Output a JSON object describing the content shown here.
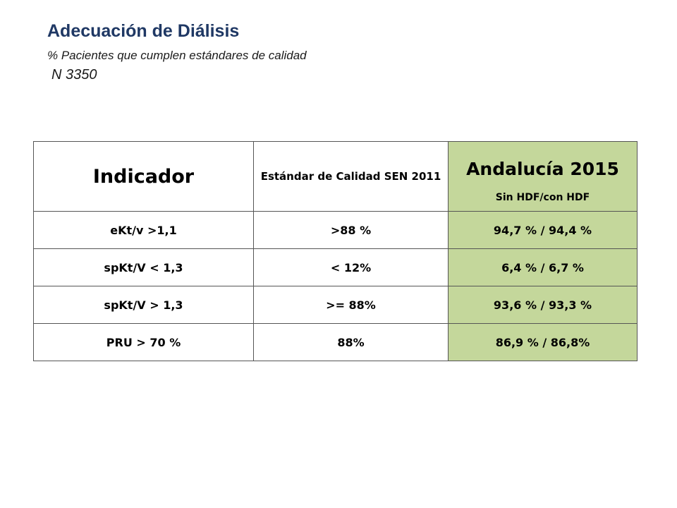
{
  "header": {
    "title": "Adecuación de Diálisis",
    "subtitle": "% Pacientes que cumplen estándares de calidad",
    "count": "N 3350"
  },
  "table": {
    "columns": {
      "indicator": "Indicador",
      "standard": "Estándar de Calidad SEN 2011",
      "region": "Andalucía 2015",
      "region_sub": "Sin HDF/con  HDF"
    },
    "rows": [
      {
        "indicator": "eKt/v >1,1",
        "standard": ">88 %",
        "value": "94,7 % / 94,4 %"
      },
      {
        "indicator": "spKt/V < 1,3",
        "standard": "< 12%",
        "value": "6,4 % / 6,7 %"
      },
      {
        "indicator": "spKt/V > 1,3",
        "standard": ">= 88%",
        "value": "93,6 % / 93,3 %"
      },
      {
        "indicator": "PRU > 70 %",
        "standard": "88%",
        "value": "86,9 % / 86,8%"
      }
    ]
  },
  "colors": {
    "title": "#1f3864",
    "highlight": "#c4d79b",
    "border": "#555555"
  }
}
